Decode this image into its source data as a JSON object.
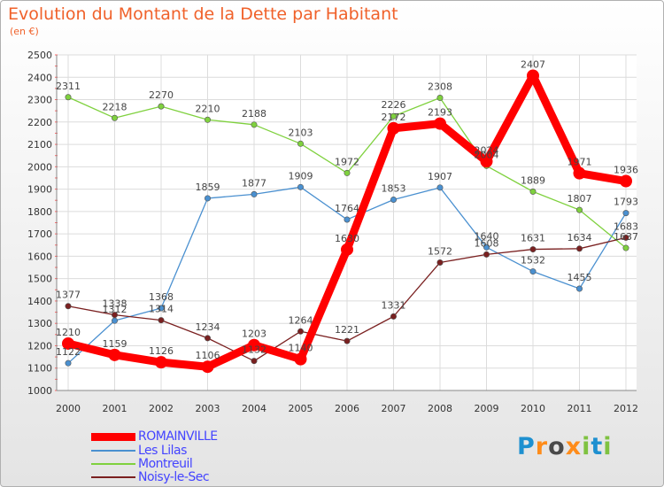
{
  "chart_data": {
    "type": "line",
    "title": "Evolution du Montant de la Dette par Habitant",
    "subtitle": "(en €)",
    "x": [
      "2000",
      "2001",
      "2002",
      "2003",
      "2004",
      "2005",
      "2006",
      "2007",
      "2008",
      "2009",
      "2010",
      "2011",
      "2012"
    ],
    "ylim": [
      1000,
      2500
    ],
    "yticks": [
      1000,
      1100,
      1200,
      1300,
      1400,
      1500,
      1600,
      1700,
      1800,
      1900,
      2000,
      2100,
      2200,
      2300,
      2400,
      2500
    ],
    "grid": true,
    "legend_position": "bottom-left",
    "series": [
      {
        "name": "ROMAINVILLE",
        "color": "#ff0000",
        "values": [
          1210,
          1159,
          1126,
          1106,
          1203,
          1140,
          1630,
          2172,
          2193,
          2024,
          2407,
          1971,
          1936
        ]
      },
      {
        "name": "Les Lilas",
        "color": "#4a90d0",
        "values": [
          1122,
          1312,
          1368,
          1859,
          1877,
          1909,
          1764,
          1853,
          1907,
          1640,
          1532,
          1455,
          1793
        ]
      },
      {
        "name": "Montreuil",
        "color": "#7fd13e",
        "values": [
          2311,
          2218,
          2270,
          2210,
          2188,
          2103,
          1972,
          2226,
          2308,
          2004,
          1889,
          1807,
          1637
        ]
      },
      {
        "name": "Noisy-le-Sec",
        "color": "#7a2020",
        "values": [
          1377,
          1338,
          1314,
          1234,
          1132,
          1264,
          1221,
          1331,
          1572,
          1608,
          1631,
          1634,
          1683
        ]
      }
    ]
  },
  "logo": {
    "text": "Proxiti",
    "letter_colors": [
      "#1e90d0",
      "#ff8c1a",
      "#4a4a4a",
      "#ff8c1a",
      "#7fc241",
      "#1e90d0",
      "#7fc241"
    ]
  }
}
